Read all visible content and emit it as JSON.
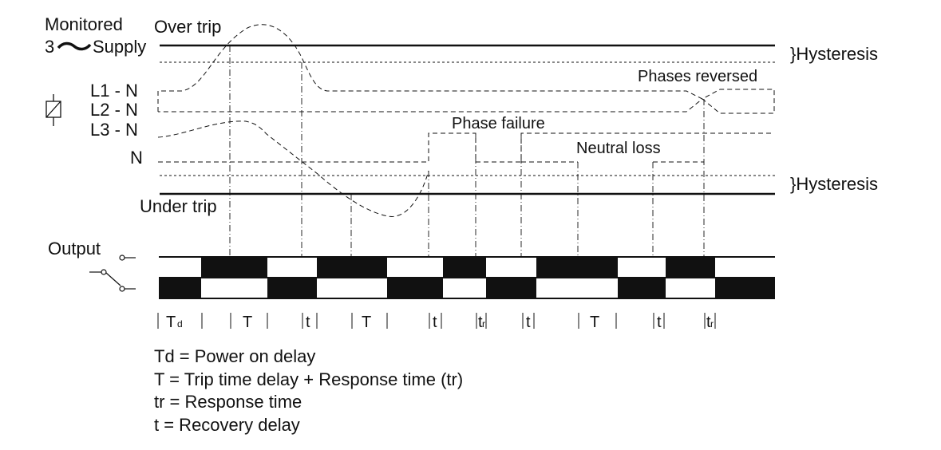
{
  "diagram": {
    "supply_label_line1": "Monitored",
    "supply_label_line2": "3",
    "supply_label_line2b": "Supply",
    "over_trip": "Over trip",
    "under_trip": "Under trip",
    "hysteresis_top": "}Hysteresis",
    "hysteresis_bottom": "}Hysteresis",
    "phases_reversed": "Phases reversed",
    "phase_failure": "Phase failure",
    "neutral_loss": "Neutral loss",
    "lines": {
      "l1": "L1 - N",
      "l2": "L2 - N",
      "l3": "L3 - N",
      "n": "N"
    },
    "output_label": "Output",
    "timing": {
      "td_main": "T",
      "td_sub": "d",
      "t1": "T",
      "r1": "t",
      "t2": "T",
      "r2": "t",
      "tr1_main": "t",
      "tr1_sub": "r",
      "r3": "t",
      "t3": "T",
      "r4": "t",
      "tr2_main": "t",
      "tr2_sub": "r"
    },
    "legend": [
      "Td = Power on delay",
      "T = Trip time delay + Response time (tr)",
      "tr = Response time",
      "t = Recovery delay"
    ]
  }
}
